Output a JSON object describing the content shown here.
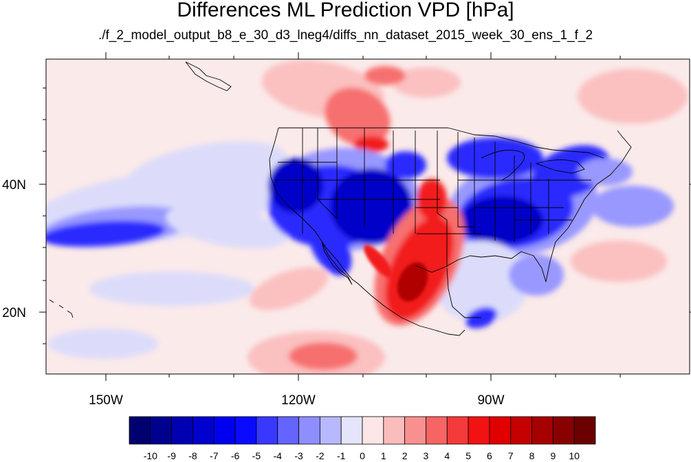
{
  "title": "Differences ML Prediction VPD [hPa]",
  "subtitle": "./f_2_model_output_b8_e_30_d3_lneg4/diffs_nn_dataset_2015_week_30_ens_1_f_2",
  "lon_ticks": [
    "150W",
    "120W",
    "90W"
  ],
  "lat_ticks": [
    "40N",
    "20N"
  ],
  "colorbar": {
    "labels": [
      "-10",
      "-9",
      "-8",
      "-7",
      "-6",
      "-5",
      "-4",
      "-3",
      "-2",
      "-1",
      "0",
      "1",
      "2",
      "3",
      "4",
      "5",
      "6",
      "7",
      "8",
      "9",
      "10"
    ],
    "colors": [
      "#000070",
      "#00008f",
      "#0000b0",
      "#0000cf",
      "#0000ee",
      "#0a0aff",
      "#3838ff",
      "#6464ff",
      "#8e8eff",
      "#b8b8ff",
      "#e4e4fa",
      "#fde6e6",
      "#fbbcbc",
      "#f99090",
      "#f76464",
      "#f43a3a",
      "#f21212",
      "#e00000",
      "#c40000",
      "#a60000",
      "#880000",
      "#6a0000"
    ]
  },
  "map_colors": {
    "ocean_neutral": "#fbeaea",
    "light_blue": "#dcdcfa",
    "mid_blue": "#9898ff",
    "strong_blue": "#2a2aff",
    "deep_blue": "#0000c8",
    "light_red": "#fbc0c0",
    "mid_red": "#f77070",
    "strong_red": "#f21a1a",
    "deep_red": "#b00000"
  }
}
